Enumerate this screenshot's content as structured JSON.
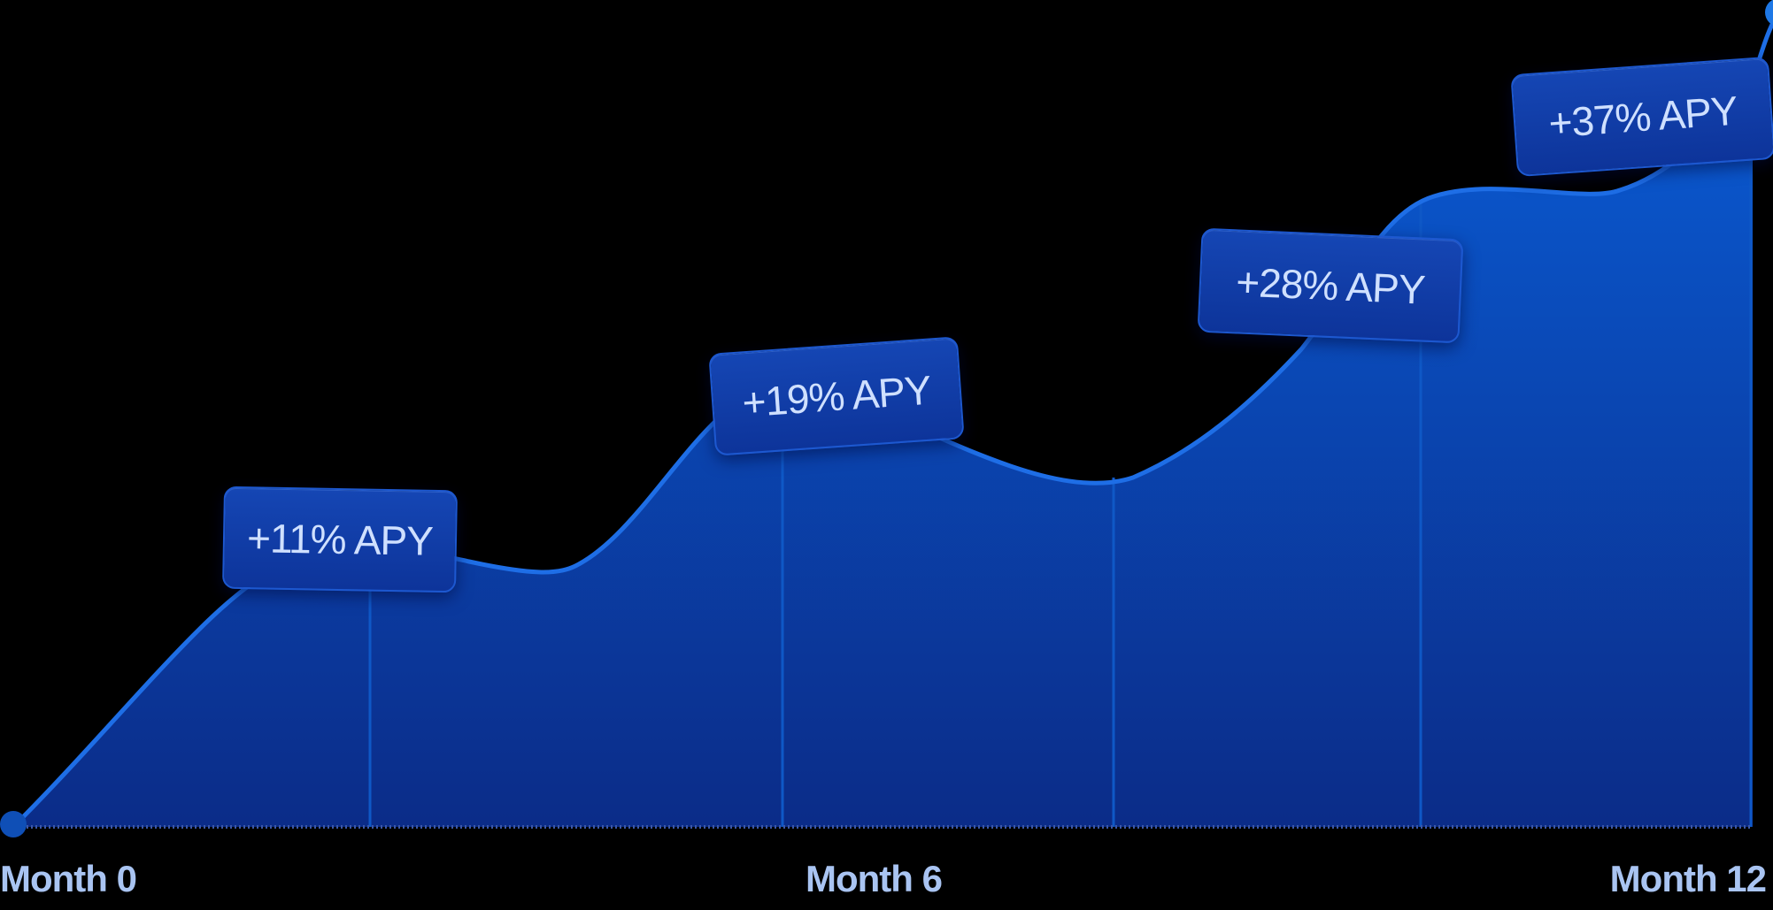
{
  "chart_data": {
    "type": "area",
    "x_tick_labels": [
      "Month 0",
      "Month 6",
      "Month 12"
    ],
    "annotations": [
      "+11% APY",
      "+19% APY",
      "+28% APY",
      "+37% APY"
    ],
    "series": [
      {
        "values": [
          0,
          3,
          11,
          8,
          19,
          14,
          28,
          30,
          37
        ]
      }
    ],
    "x": [
      0,
      1.5,
      3,
      4,
      5.5,
      7.5,
      9,
      10.5,
      12
    ],
    "ylim": [
      0,
      40
    ],
    "grid": false,
    "colors": {
      "line": "#1e6ee6",
      "fill_top": "#0a5ad2",
      "fill_bottom": "#0b2c88",
      "marker": "#1e78e6"
    }
  }
}
